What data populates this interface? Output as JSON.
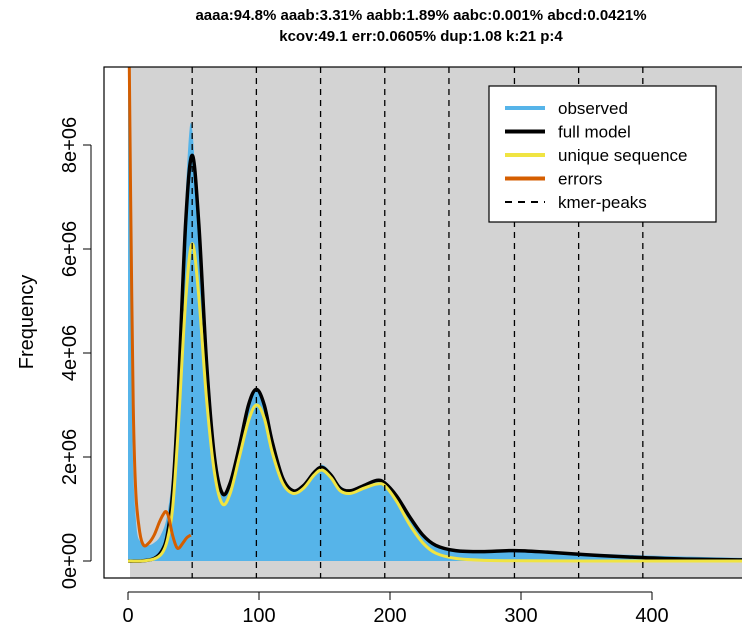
{
  "chart_data": {
    "type": "line",
    "title_lines": [
      "aaaa:94.8% aaab:3.31% aabb:1.89% aabc:0.001% abcd:0.0421%",
      "kcov:49.1 err:0.0605%  dup:1.08  k:21 p:4"
    ],
    "xlabel": "",
    "ylabel": "Frequency",
    "xlim": [
      -18,
      470
    ],
    "ylim": [
      -330000,
      9500000
    ],
    "xticks": [
      0,
      100,
      200,
      300,
      400
    ],
    "xtick_labels": [
      "0",
      "100",
      "200",
      "300",
      "400"
    ],
    "yticks": [
      0,
      2000000,
      4000000,
      6000000,
      8000000
    ],
    "ytick_labels": [
      "0e+00",
      "2e+06",
      "4e+06",
      "6e+06",
      "8e+06"
    ],
    "kmer_peaks": [
      49,
      98,
      147,
      196,
      245,
      295,
      344,
      393
    ],
    "background_color": "#d3d3d3",
    "legend": {
      "placement": "top-right",
      "entries": [
        {
          "label": "observed",
          "color": "#56B4E9",
          "style": "solid"
        },
        {
          "label": "full model",
          "color": "#000000",
          "style": "solid"
        },
        {
          "label": "unique sequence",
          "color": "#F0E442",
          "style": "solid"
        },
        {
          "label": "errors",
          "color": "#D55E00",
          "style": "solid"
        },
        {
          "label": "kmer-peaks",
          "color": "#000000",
          "style": "dashed"
        }
      ]
    },
    "series": [
      {
        "name": "observed",
        "x": [
          0,
          1,
          3,
          6,
          10,
          15,
          20,
          25,
          30,
          35,
          40,
          44,
          47,
          49,
          51,
          54,
          60,
          66,
          72,
          78,
          85,
          92,
          98,
          104,
          110,
          118,
          126,
          134,
          142,
          148,
          155,
          162,
          170,
          180,
          190,
          196,
          205,
          215,
          225,
          235,
          250,
          270,
          295,
          320,
          350,
          380,
          420,
          470
        ],
        "y": [
          9500000,
          9500000,
          3000000,
          800000,
          350000,
          300000,
          350000,
          500000,
          900000,
          2000000,
          4500000,
          7000000,
          8300000,
          8300000,
          7600000,
          6300000,
          3800000,
          2000000,
          1300000,
          1500000,
          2200000,
          3000000,
          3300000,
          3000000,
          2300000,
          1600000,
          1350000,
          1450000,
          1700000,
          1850000,
          1700000,
          1450000,
          1350000,
          1450000,
          1550000,
          1500000,
          1250000,
          850000,
          500000,
          320000,
          230000,
          200000,
          200000,
          180000,
          150000,
          120000,
          90000,
          60000
        ]
      },
      {
        "name": "full model",
        "x": [
          0,
          10,
          20,
          26,
          30,
          34,
          38,
          44,
          49,
          54,
          60,
          66,
          72,
          78,
          85,
          92,
          98,
          104,
          110,
          118,
          126,
          134,
          142,
          148,
          155,
          162,
          170,
          180,
          190,
          196,
          205,
          215,
          225,
          235,
          250,
          270,
          295,
          320,
          350,
          380,
          420,
          470
        ],
        "y": [
          0,
          0,
          50000,
          200000,
          500000,
          1300000,
          3000000,
          6500000,
          7800000,
          6500000,
          3800000,
          2000000,
          1300000,
          1500000,
          2200000,
          3000000,
          3300000,
          3000000,
          2300000,
          1600000,
          1350000,
          1450000,
          1700000,
          1800000,
          1650000,
          1400000,
          1350000,
          1450000,
          1550000,
          1500000,
          1250000,
          850000,
          500000,
          300000,
          200000,
          180000,
          200000,
          170000,
          120000,
          80000,
          40000,
          20000
        ]
      },
      {
        "name": "unique sequence",
        "x": [
          0,
          10,
          20,
          26,
          30,
          34,
          38,
          44,
          49,
          54,
          60,
          66,
          72,
          78,
          85,
          92,
          98,
          104,
          110,
          118,
          126,
          134,
          142,
          148,
          155,
          162,
          170,
          180,
          190,
          196,
          205,
          215,
          225,
          235,
          250,
          270,
          295,
          350,
          470
        ],
        "y": [
          0,
          0,
          40000,
          150000,
          400000,
          1000000,
          2400000,
          5000000,
          6100000,
          5100000,
          3100000,
          1700000,
          1100000,
          1300000,
          2000000,
          2700000,
          3000000,
          2750000,
          2100000,
          1500000,
          1300000,
          1400000,
          1650000,
          1750000,
          1600000,
          1350000,
          1300000,
          1400000,
          1480000,
          1450000,
          1150000,
          700000,
          350000,
          150000,
          50000,
          15000,
          5000,
          0,
          0
        ]
      },
      {
        "name": "errors",
        "x": [
          1,
          2,
          4,
          6,
          9,
          12,
          16,
          20,
          24,
          27,
          29,
          31,
          34,
          37,
          39,
          42,
          45,
          48
        ],
        "y": [
          9500000,
          7000000,
          3000000,
          1300000,
          550000,
          300000,
          350000,
          500000,
          750000,
          900000,
          950000,
          850000,
          500000,
          270000,
          250000,
          350000,
          450000,
          500000
        ]
      }
    ]
  }
}
